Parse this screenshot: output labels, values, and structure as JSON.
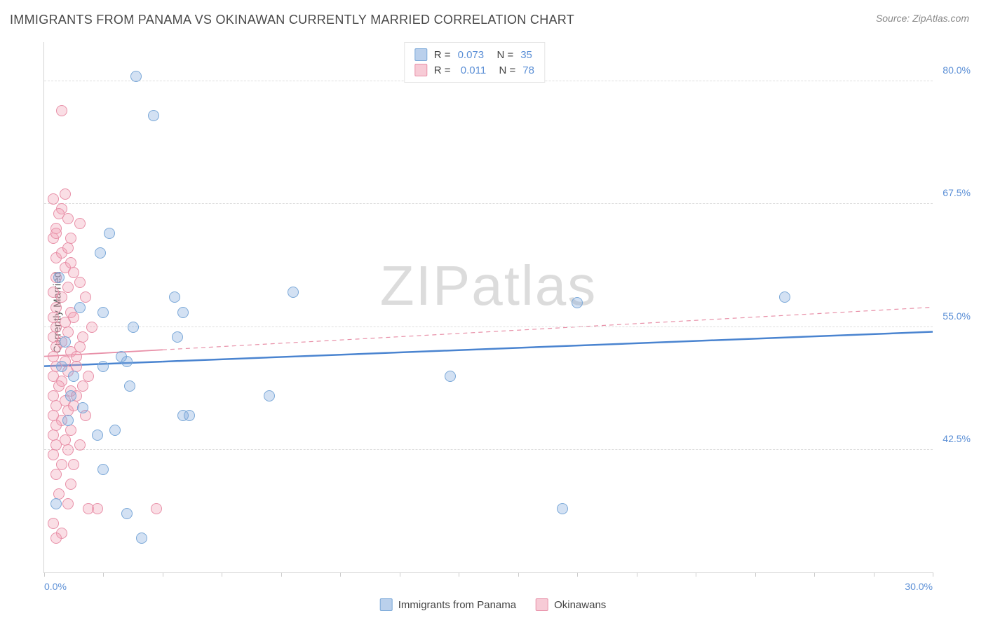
{
  "title": "IMMIGRANTS FROM PANAMA VS OKINAWAN CURRENTLY MARRIED CORRELATION CHART",
  "source": "Source: ZipAtlas.com",
  "watermark": "ZIPatlas",
  "chart": {
    "type": "scatter",
    "ylabel": "Currently Married",
    "xlim": [
      0,
      30
    ],
    "ylim": [
      30,
      84
    ],
    "xticks_minor": [
      0,
      2,
      4,
      6,
      8,
      10,
      12,
      14,
      16,
      18,
      20,
      22,
      24,
      26,
      28,
      30
    ],
    "xtick_labels": [
      {
        "x": 0,
        "label": "0.0%",
        "align": "left"
      },
      {
        "x": 30,
        "label": "30.0%",
        "align": "right"
      }
    ],
    "ytick_labels": [
      {
        "y": 80.0,
        "label": "80.0%"
      },
      {
        "y": 67.5,
        "label": "67.5%"
      },
      {
        "y": 55.0,
        "label": "55.0%"
      },
      {
        "y": 42.5,
        "label": "42.5%"
      }
    ],
    "gridlines_y": [
      80.0,
      67.5,
      55.0,
      42.5
    ],
    "background_color": "#ffffff",
    "grid_color": "#dddddd",
    "marker_radius": 8,
    "series": [
      {
        "name": "Immigrants from Panama",
        "color_fill": "rgba(130,170,220,0.35)",
        "color_stroke": "#7aa8d8",
        "r": "0.073",
        "n": "35",
        "trend": {
          "y_start": 51.0,
          "y_end": 54.5,
          "x_solid_end": 4.0,
          "stroke": "#4a84d0",
          "stroke_width": 2.5
        },
        "points": [
          [
            3.1,
            80.5
          ],
          [
            3.7,
            76.5
          ],
          [
            2.2,
            64.5
          ],
          [
            1.9,
            62.5
          ],
          [
            4.4,
            58.0
          ],
          [
            4.7,
            56.5
          ],
          [
            8.4,
            58.5
          ],
          [
            25.0,
            58.0
          ],
          [
            3.0,
            55.0
          ],
          [
            1.2,
            57.0
          ],
          [
            4.5,
            54.0
          ],
          [
            2.8,
            51.5
          ],
          [
            2.0,
            51.0
          ],
          [
            0.7,
            53.5
          ],
          [
            1.0,
            50.0
          ],
          [
            2.9,
            49.0
          ],
          [
            13.7,
            50.0
          ],
          [
            18.0,
            57.5
          ],
          [
            7.6,
            48.0
          ],
          [
            4.7,
            46.0
          ],
          [
            4.9,
            46.0
          ],
          [
            2.4,
            44.5
          ],
          [
            1.8,
            44.0
          ],
          [
            0.8,
            45.5
          ],
          [
            2.0,
            40.5
          ],
          [
            2.8,
            36.0
          ],
          [
            3.3,
            33.5
          ],
          [
            0.4,
            37.0
          ],
          [
            17.5,
            36.5
          ],
          [
            1.3,
            46.8
          ],
          [
            0.9,
            48.0
          ],
          [
            0.6,
            51.0
          ],
          [
            0.5,
            60.0
          ],
          [
            2.0,
            56.5
          ],
          [
            2.6,
            52.0
          ]
        ]
      },
      {
        "name": "Okinawans",
        "color_fill": "rgba(240,160,180,0.35)",
        "color_stroke": "#e890a8",
        "r": "0.011",
        "n": "78",
        "trend": {
          "y_start": 52.0,
          "y_end": 57.0,
          "x_solid_end": 4.0,
          "stroke": "#e890a8",
          "stroke_width": 1.8
        },
        "points": [
          [
            0.6,
            77.0
          ],
          [
            0.3,
            68.0
          ],
          [
            0.6,
            67.0
          ],
          [
            0.8,
            66.0
          ],
          [
            0.4,
            65.0
          ],
          [
            1.2,
            65.5
          ],
          [
            0.3,
            64.0
          ],
          [
            0.9,
            64.0
          ],
          [
            0.4,
            62.0
          ],
          [
            0.7,
            61.0
          ],
          [
            0.4,
            60.0
          ],
          [
            0.8,
            59.0
          ],
          [
            0.3,
            58.5
          ],
          [
            0.6,
            58.0
          ],
          [
            0.4,
            57.0
          ],
          [
            0.9,
            56.5
          ],
          [
            0.3,
            56.0
          ],
          [
            0.7,
            55.5
          ],
          [
            0.4,
            55.0
          ],
          [
            0.8,
            54.5
          ],
          [
            0.3,
            54.0
          ],
          [
            0.6,
            53.5
          ],
          [
            0.4,
            53.0
          ],
          [
            0.9,
            52.5
          ],
          [
            0.3,
            52.0
          ],
          [
            0.7,
            51.5
          ],
          [
            0.4,
            51.0
          ],
          [
            0.8,
            50.5
          ],
          [
            0.3,
            50.0
          ],
          [
            0.6,
            49.5
          ],
          [
            0.5,
            49.0
          ],
          [
            0.9,
            48.5
          ],
          [
            0.3,
            48.0
          ],
          [
            0.7,
            47.5
          ],
          [
            0.4,
            47.0
          ],
          [
            0.8,
            46.5
          ],
          [
            0.3,
            46.0
          ],
          [
            0.6,
            45.5
          ],
          [
            0.4,
            45.0
          ],
          [
            0.9,
            44.5
          ],
          [
            0.3,
            44.0
          ],
          [
            0.7,
            43.5
          ],
          [
            0.4,
            43.0
          ],
          [
            0.8,
            42.5
          ],
          [
            0.3,
            42.0
          ],
          [
            0.6,
            41.0
          ],
          [
            0.4,
            40.0
          ],
          [
            0.9,
            39.0
          ],
          [
            1.5,
            36.5
          ],
          [
            1.8,
            36.5
          ],
          [
            0.3,
            35.0
          ],
          [
            0.6,
            34.0
          ],
          [
            0.4,
            33.5
          ],
          [
            3.8,
            36.5
          ],
          [
            1.1,
            52.0
          ],
          [
            1.3,
            54.0
          ],
          [
            1.0,
            56.0
          ],
          [
            1.4,
            58.0
          ],
          [
            1.1,
            51.0
          ],
          [
            1.3,
            49.0
          ],
          [
            1.0,
            47.0
          ],
          [
            1.5,
            50.0
          ],
          [
            1.2,
            53.0
          ],
          [
            1.6,
            55.0
          ],
          [
            1.1,
            48.0
          ],
          [
            1.4,
            46.0
          ],
          [
            0.5,
            38.0
          ],
          [
            0.8,
            37.0
          ],
          [
            1.0,
            41.0
          ],
          [
            1.2,
            43.0
          ],
          [
            0.6,
            62.5
          ],
          [
            0.8,
            63.0
          ],
          [
            0.5,
            66.5
          ],
          [
            0.7,
            68.5
          ],
          [
            1.0,
            60.5
          ],
          [
            1.2,
            59.5
          ],
          [
            0.4,
            64.5
          ],
          [
            0.9,
            61.5
          ]
        ]
      }
    ],
    "legend_bottom": [
      {
        "swatch": "blue",
        "label": "Immigrants from Panama"
      },
      {
        "swatch": "pink",
        "label": "Okinawans"
      }
    ]
  }
}
